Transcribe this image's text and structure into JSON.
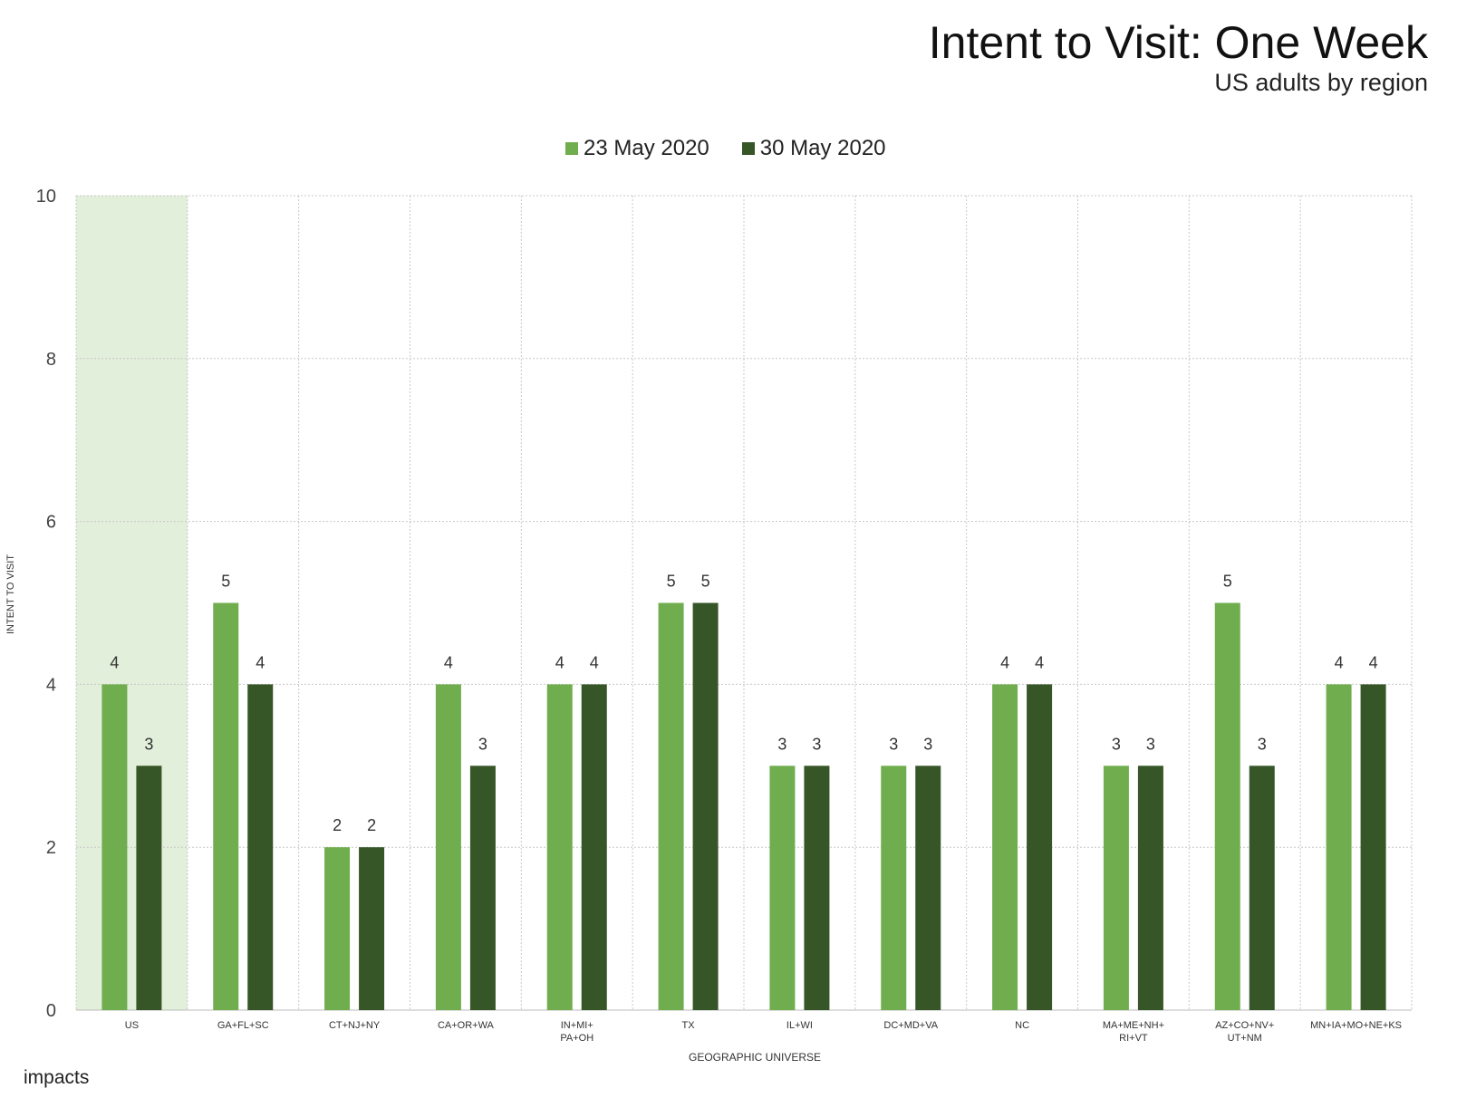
{
  "chart_data": {
    "type": "bar",
    "title": "Intent to Visit: One Week",
    "subtitle": "US adults by region",
    "xlabel": "GEOGRAPHIC UNIVERSE",
    "ylabel": "INTENT TO VISIT",
    "ylim": [
      0,
      10
    ],
    "yticks": [
      0,
      2,
      4,
      6,
      8,
      10
    ],
    "grid": true,
    "legend_position": "top-center",
    "highlighted_category": "US",
    "categories": [
      [
        "US"
      ],
      [
        "GA+FL+SC"
      ],
      [
        "CT+NJ+NY"
      ],
      [
        "CA+OR+WA"
      ],
      [
        "IN+MI+",
        "PA+OH"
      ],
      [
        "TX"
      ],
      [
        "IL+WI"
      ],
      [
        "DC+MD+VA"
      ],
      [
        "NC"
      ],
      [
        "MA+ME+NH+",
        "RI+VT"
      ],
      [
        "AZ+CO+NV+",
        "UT+NM"
      ],
      [
        "MN+IA+MO+NE+KS"
      ]
    ],
    "series": [
      {
        "name": "23 May 2020",
        "color": "#70ad4e",
        "values": [
          4,
          5,
          2,
          4,
          4,
          5,
          3,
          3,
          4,
          3,
          5,
          4
        ]
      },
      {
        "name": "30 May 2020",
        "color": "#375627",
        "values": [
          3,
          4,
          2,
          3,
          4,
          5,
          3,
          3,
          4,
          3,
          3,
          4
        ]
      }
    ],
    "highlight_color": "#e2efda"
  },
  "brand": "impacts"
}
